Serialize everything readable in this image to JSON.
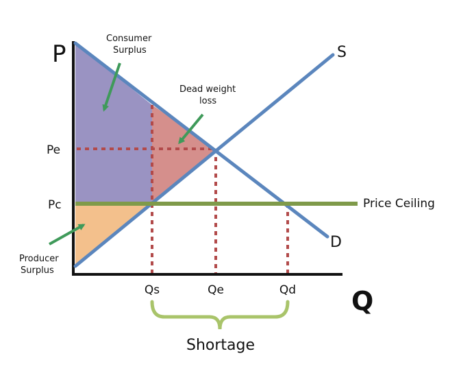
{
  "axes": {
    "y_label": "P",
    "x_label": "Q"
  },
  "price_ticks": {
    "equilibrium": "Pe",
    "ceiling": "Pc"
  },
  "quantity_ticks": {
    "supplied": "Qs",
    "equilibrium": "Qe",
    "demanded": "Qd"
  },
  "curves": {
    "supply": "S",
    "demand": "D",
    "price_ceiling": "Price Ceiling"
  },
  "annotations": {
    "consumer_surplus": [
      "Consumer",
      "Surplus"
    ],
    "dead_weight_loss": [
      "Dead weight",
      "loss"
    ],
    "producer_surplus": [
      "Producer",
      "Surplus"
    ],
    "shortage": "Shortage"
  },
  "colors": {
    "curve": "#5b86bd",
    "ceiling": "#7f9a4a",
    "consumer_surplus": "#9a93c2",
    "dead_weight_loss": "#d58f8c",
    "producer_surplus": "#f3c08c",
    "dotted_guide": "#b24a4a",
    "arrow": "#3f9a5a",
    "bracket": "#a9c46a"
  }
}
